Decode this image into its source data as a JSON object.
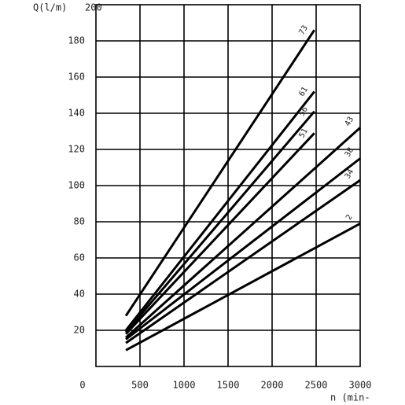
{
  "chart_data": {
    "type": "line",
    "y_label": "Q(l/m)",
    "x_label": "n (min-",
    "xlim": [
      0,
      3000
    ],
    "ylim": [
      0,
      200
    ],
    "xticks": [
      0,
      500,
      1000,
      1500,
      2000,
      2500,
      3000
    ],
    "yticks": [
      0,
      20,
      40,
      60,
      80,
      100,
      120,
      140,
      160,
      180,
      200
    ],
    "grid": true,
    "series": [
      {
        "name": "73",
        "color": "#000000",
        "x": [
          340,
          2480
        ],
        "values": [
          28,
          186
        ]
      },
      {
        "name": "61",
        "color": "#000000",
        "x": [
          340,
          2480
        ],
        "values": [
          20,
          152
        ]
      },
      {
        "name": "56",
        "color": "#000000",
        "x": [
          340,
          2480
        ],
        "values": [
          19,
          141
        ]
      },
      {
        "name": "51",
        "color": "#000000",
        "x": [
          340,
          2480
        ],
        "values": [
          18,
          129
        ]
      },
      {
        "name": "43",
        "color": "#000000",
        "x": [
          340,
          3000
        ],
        "values": [
          16,
          132
        ]
      },
      {
        "name": "38",
        "color": "#000000",
        "x": [
          340,
          3000
        ],
        "values": [
          15,
          115
        ]
      },
      {
        "name": "34",
        "color": "#000000",
        "x": [
          340,
          3000
        ],
        "values": [
          13,
          103
        ]
      },
      {
        "name": "2",
        "color": "#000000",
        "x": [
          340,
          3000
        ],
        "values": [
          9,
          79
        ]
      }
    ]
  }
}
